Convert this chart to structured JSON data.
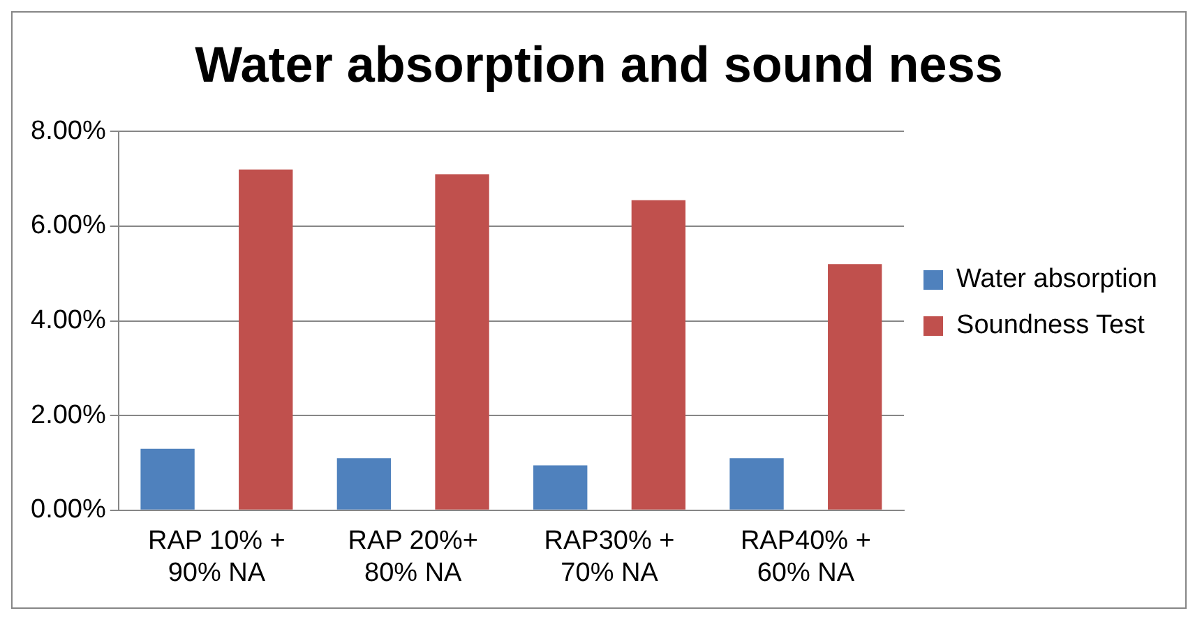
{
  "chart_data": {
    "type": "bar",
    "title": "Water absorption and sound ness",
    "categories": [
      "RAP 10% +\n90% NA",
      "RAP 20%+\n80% NA",
      "RAP30% +\n70% NA",
      "RAP40% +\n60% NA"
    ],
    "series": [
      {
        "name": "Water absorption",
        "color": "#4f81bd",
        "values": [
          1.3,
          1.1,
          0.95,
          1.1
        ]
      },
      {
        "name": "Soundness Test",
        "color": "#c0504d",
        "values": [
          7.2,
          7.1,
          6.55,
          5.2
        ]
      }
    ],
    "ylim": [
      0,
      8
    ],
    "yticks": [
      {
        "value": 0,
        "label": "0.00%"
      },
      {
        "value": 2,
        "label": "2.00%"
      },
      {
        "value": 4,
        "label": "4.00%"
      },
      {
        "value": 6,
        "label": "6.00%"
      },
      {
        "value": 8,
        "label": "8.00%"
      }
    ],
    "grid": "y",
    "legend": "right"
  }
}
